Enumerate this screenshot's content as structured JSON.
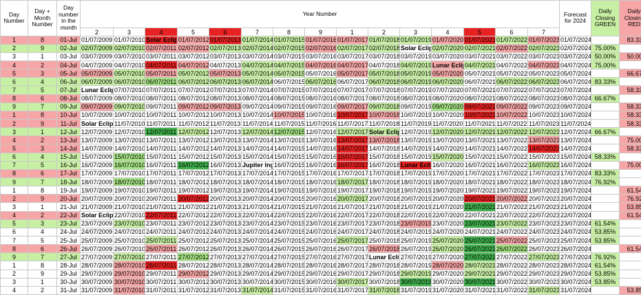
{
  "headers": {
    "day_number": "Day Number",
    "day_month_number": "Day + Month Number",
    "day_number_month": "Day number in the month",
    "year_number": "Year Number",
    "forecast": "Forecast for 2024",
    "green": "Daily Closing GREEN",
    "red": "Daily Closing RED"
  },
  "year_numbers": [
    "2",
    "3",
    "4",
    "5",
    "6",
    "7",
    "8",
    "9",
    "1",
    "2",
    "3",
    "4",
    "5",
    "6",
    "7"
  ],
  "rows": [
    {
      "d": "1",
      "dm": "8",
      "day": "01-Jul",
      "cells": [
        "01/07/2009",
        "01/07/2010",
        "Solar Eclips",
        "01/07/2012",
        "01/07/2013",
        "01/07/2014",
        "01/07/2015",
        "01/07/2016",
        "01/07/2017",
        "01/07/2018",
        "01/07/2019",
        "01/07/2020",
        "01/07/2021",
        "01/07/2022",
        "01/07/2023"
      ],
      "f": "01/07/2024",
      "g": "",
      "r": "83.33%"
    },
    {
      "d": "2",
      "dm": "9",
      "day": "02-Jul",
      "cells": [
        "02/07/2009",
        "02/07/2010",
        "02/07/2011",
        "02/07/2012",
        "02/07/2013",
        "02/07/2014",
        "02/07/2015",
        "02/07/2016",
        "02/07/2017",
        "02/07/2018",
        "Solar Eclips",
        "02/07/2020",
        "02/07/2021",
        "02/07/2022",
        "02/07/2023"
      ],
      "f": "02/07/2024",
      "g": "75.00%",
      "r": ""
    },
    {
      "d": "3",
      "dm": "1",
      "day": "03-Jul",
      "cells": [
        "03/07/2009",
        "03/07/2010",
        "03/07/2011",
        "03/07/2012",
        "03/07/2013",
        "03/07/2014",
        "03/07/2015",
        "03/07/2016",
        "03/07/2017",
        "03/07/2018",
        "03/07/2019",
        "03/07/2020",
        "03/07/2021",
        "03/07/2022",
        "03/07/2023"
      ],
      "f": "03/07/2024",
      "g": "50.00%",
      "r": "50.00%"
    },
    {
      "d": "4",
      "dm": "2",
      "day": "04-Jul",
      "cells": [
        "04/07/2009",
        "04/07/2010",
        "04/07/2011",
        "04/07/2012",
        "04/07/2013",
        "04/07/2014",
        "04/07/2015",
        "04/07/2016",
        "04/07/2017",
        "04/07/2018",
        "04/07/2019",
        "Lunar Eclips",
        "04/07/2021",
        "04/07/2022",
        "04/07/2023"
      ],
      "f": "04/07/2024",
      "g": "75.00%",
      "r": ""
    },
    {
      "d": "5",
      "dm": "3",
      "day": "05-Jul",
      "cells": [
        "05/07/2009",
        "05/07/2010",
        "05/07/2011",
        "05/07/2012",
        "05/07/2013",
        "05/07/2014",
        "05/07/2015",
        "05/07/2016",
        "05/07/2017",
        "05/07/2018",
        "05/07/2019",
        "05/07/2020",
        "05/07/2021",
        "05/07/2022",
        "05/07/2023"
      ],
      "f": "05/07/2024",
      "g": "",
      "r": "66.67%"
    },
    {
      "d": "6",
      "dm": "4",
      "day": "06-Jul",
      "cells": [
        "06/07/2009",
        "06/07/2010",
        "06/07/2011",
        "06/07/2012",
        "06/07/2013",
        "06/07/2014",
        "06/07/2015",
        "06/07/2016",
        "06/07/2017",
        "06/07/2018",
        "06/07/2019",
        "06/07/2020",
        "06/07/2021",
        "06/07/2022",
        "06/07/2023"
      ],
      "f": "06/07/2024",
      "g": "83.33%",
      "r": ""
    },
    {
      "d": "7",
      "dm": "5",
      "day": "07-Jul",
      "cells": [
        "Lunar Eclips",
        "07/07/2010",
        "07/07/2011",
        "07/07/2012",
        "07/07/2013",
        "07/07/2014",
        "07/07/2015",
        "07/07/2016",
        "07/07/2017",
        "07/07/2018",
        "07/07/2019",
        "07/07/2020",
        "07/07/2021",
        "07/07/2022",
        "07/07/2023"
      ],
      "f": "07/07/2024",
      "g": "",
      "r": "58.33%"
    },
    {
      "d": "8",
      "dm": "6",
      "day": "08-Jul",
      "cells": [
        "08/07/2009",
        "08/07/2010",
        "08/07/2011",
        "08/07/2012",
        "08/07/2013",
        "08/07/2014",
        "08/07/2015",
        "08/07/2016",
        "08/07/2017",
        "08/07/2018",
        "08/07/2019",
        "08/07/2020",
        "08/07/2021",
        "08/07/2022",
        "08/07/2023"
      ],
      "f": "08/07/2024",
      "g": "66.67%",
      "r": ""
    },
    {
      "d": "9",
      "dm": "7",
      "day": "09-Jul",
      "cells": [
        "09/07/2009",
        "09/07/2010",
        "09/07/2011",
        "09/07/2012",
        "09/07/2013",
        "09/07/2014",
        "09/07/2015",
        "09/07/2016",
        "09/07/2017",
        "09/07/2018",
        "09/07/2019",
        "09/07/2020",
        "09/07/2021",
        "09/07/2022",
        "09/07/2023"
      ],
      "f": "09/07/2024",
      "g": "",
      "r": "58.33%"
    },
    {
      "d": "1",
      "dm": "8",
      "day": "10-Jul",
      "cells": [
        "10/07/2009",
        "10/07/2010",
        "10/07/2011",
        "10/07/2012",
        "10/07/2013",
        "10/07/2014",
        "10/07/2015",
        "10/07/2016",
        "10/07/2017",
        "10/07/2018",
        "10/07/2019",
        "10/07/2020",
        "10/07/2021",
        "10/07/2022",
        "10/07/2023"
      ],
      "f": "10/07/2024",
      "g": "",
      "r": "58.33%"
    },
    {
      "d": "2",
      "dm": "9",
      "day": "11-Jul",
      "cells": [
        "Solar Eclips",
        "11/07/2010",
        "11/07/2011",
        "11/07/2012",
        "11/07/2013",
        "11/07/2014",
        "11/07/2015",
        "11/07/2016",
        "11/07/2017",
        "11/07/2018",
        "11/07/2019",
        "11/07/2020",
        "11/07/2021",
        "11/07/2022",
        "11/07/2023"
      ],
      "f": "11/07/2024",
      "g": "",
      "r": "58.33%"
    },
    {
      "d": "3",
      "dm": "1",
      "day": "12-Jul",
      "cells": [
        "12/07/2009",
        "12/07/2010",
        "12/07/2011",
        "12/07/2012",
        "12/07/2013",
        "12/07/2014",
        "12/07/2015",
        "12/07/2016",
        "12/07/2017",
        "Solar Eclips",
        "12/07/2019",
        "12/07/2020",
        "12/07/2021",
        "12/07/2022",
        "12/07/2023"
      ],
      "f": "12/07/2024",
      "g": "66.67%",
      "r": ""
    },
    {
      "d": "4",
      "dm": "2",
      "day": "13-Jul",
      "cells": [
        "13/07/2009",
        "13/07/2010",
        "13/07/2011",
        "13/07/2012",
        "13/07/2013",
        "13/07/2014",
        "13/07/2015",
        "13/07/2016",
        "13/07/2017",
        "13/07/2018",
        "13/07/2019",
        "13/07/2020",
        "13/07/2021",
        "13/07/2022",
        "13/07/2023"
      ],
      "f": "13/07/2024",
      "g": "",
      "r": "75.00%"
    },
    {
      "d": "5",
      "dm": "3",
      "day": "14-Jul",
      "cells": [
        "14/07/2009",
        "14/07/2010",
        "14/07/2011",
        "14/07/2012",
        "14/07/2013",
        "14/07/2014",
        "14/07/2015",
        "14/07/2016",
        "14/07/2017",
        "14/07/2018",
        "14/07/2019",
        "14/07/2020",
        "14/07/2021",
        "14/07/2022",
        "14/07/2023"
      ],
      "f": "14/07/2024",
      "g": "",
      "r": "58.33%"
    },
    {
      "d": "6",
      "dm": "4",
      "day": "15-Jul",
      "cells": [
        "15/07/2009",
        "15/07/2010",
        "15/07/2011",
        "15/07/2012",
        "15/07/2013",
        "15/07/2014",
        "15/07/2015",
        "15/07/2016",
        "15/07/2017",
        "15/07/2018",
        "15/07/2019",
        "15/07/2020",
        "15/07/2021",
        "15/07/2022",
        "15/07/2023"
      ],
      "f": "15/07/2024",
      "g": "58.33%",
      "r": ""
    },
    {
      "d": "7",
      "dm": "5",
      "day": "16-Jul",
      "cells": [
        "16/07/2009",
        "16/07/2010",
        "16/07/2011",
        "16/07/2012",
        "16/07/2013",
        "Jupiter Ingr",
        "16/07/2015",
        "16/07/2016",
        "16/07/2017",
        "16/07/2018",
        "Lunar Eclips",
        "16/07/2020",
        "16/07/2021",
        "16/07/2022",
        "16/07/2023"
      ],
      "f": "16/07/2024",
      "g": "",
      "r": "75.00%"
    },
    {
      "d": "8",
      "dm": "6",
      "day": "17-Jul",
      "cells": [
        "17/07/2009",
        "17/07/2010",
        "17/07/2011",
        "17/07/2012",
        "17/07/2013",
        "17/07/2014",
        "17/07/2015",
        "17/07/2016",
        "17/07/2017",
        "17/07/2018",
        "17/07/2019",
        "17/07/2020",
        "17/07/2021",
        "17/07/2022",
        "17/07/2023"
      ],
      "f": "17/07/2024",
      "g": "83.33%",
      "r": ""
    },
    {
      "d": "9",
      "dm": "7",
      "day": "18-Jul",
      "cells": [
        "18/07/2009",
        "18/07/2010",
        "18/07/2011",
        "18/07/2012",
        "18/07/2013",
        "18/07/2014",
        "18/07/2015",
        "18/07/2016",
        "18/07/2017",
        "18/07/2018",
        "18/07/2019",
        "18/07/2020",
        "18/07/2021",
        "18/07/2022",
        "18/07/2023"
      ],
      "f": "18/07/2024",
      "g": "76.92%",
      "r": ""
    },
    {
      "d": "1",
      "dm": "8",
      "day": "19-Jul",
      "cells": [
        "19/07/2009",
        "19/07/2010",
        "19/07/2011",
        "19/07/2012",
        "19/07/2013",
        "19/07/2014",
        "19/07/2015",
        "19/07/2016",
        "19/07/2017",
        "19/07/2018",
        "19/07/2019",
        "19/07/2020",
        "19/07/2021",
        "19/07/2022",
        "19/07/2023"
      ],
      "f": "19/07/2024",
      "g": "",
      "r": "61.54%"
    },
    {
      "d": "2",
      "dm": "9",
      "day": "20-Jul",
      "cells": [
        "20/07/2009",
        "20/07/2010",
        "20/07/2011",
        "20/07/2012",
        "20/07/2013",
        "20/07/2014",
        "20/07/2015",
        "20/07/2016",
        "20/07/2017",
        "20/07/2018",
        "20/07/2019",
        "20/07/2020",
        "20/07/2021",
        "20/07/2022",
        "20/07/2023"
      ],
      "f": "20/07/2024",
      "g": "",
      "r": "76.92%"
    },
    {
      "d": "3",
      "dm": "1",
      "day": "21-Jul",
      "cells": [
        "21/07/2009",
        "21/07/2010",
        "21/07/2011",
        "21/07/2012",
        "21/07/2013",
        "21/07/2014",
        "21/07/2015",
        "21/07/2016",
        "21/07/2017",
        "21/07/2018",
        "21/07/2019",
        "21/07/2020",
        "21/07/2021",
        "21/07/2022",
        "21/07/2023"
      ],
      "f": "21/07/2024",
      "g": "",
      "r": "53.85%"
    },
    {
      "d": "4",
      "dm": "2",
      "day": "22-Jul",
      "cells": [
        "Solar Eclipse",
        "22/07/2010",
        "22/07/2011",
        "22/07/2012",
        "22/07/2013",
        "22/07/2014",
        "22/07/2015",
        "22/07/2016",
        "22/07/2017",
        "22/07/2018",
        "22/07/2019",
        "22/07/2020",
        "22/07/2021",
        "22/07/2022",
        "22/07/2023"
      ],
      "f": "22/07/2024",
      "g": "",
      "r": "61.54%"
    },
    {
      "d": "5",
      "dm": "3",
      "day": "23-Jul",
      "cells": [
        "23/07/2009",
        "23/07/2010",
        "23/07/2011",
        "23/07/2012",
        "23/07/2013",
        "23/07/2014",
        "23/07/2015",
        "23/07/2016",
        "23/07/2017",
        "23/07/2018",
        "23/07/2019",
        "23/07/2020",
        "23/07/2021",
        "23/07/2022",
        "23/07/2023"
      ],
      "f": "23/07/2024",
      "g": "61.54%",
      "r": ""
    },
    {
      "d": "6",
      "dm": "4",
      "day": "24-Jul",
      "cells": [
        "24/07/2009",
        "24/07/2010",
        "24/07/2011",
        "24/07/2012",
        "24/07/2013",
        "24/07/2014",
        "24/07/2015",
        "24/07/2016",
        "24/07/2017",
        "24/07/2018",
        "24/07/2019",
        "24/07/2020",
        "24/07/2021",
        "24/07/2022",
        "24/07/2023"
      ],
      "f": "24/07/2024",
      "g": "53.85%",
      "r": ""
    },
    {
      "d": "7",
      "dm": "5",
      "day": "25-Jul",
      "cells": [
        "25/07/2009",
        "25/07/2010",
        "25/07/2011",
        "25/07/2012",
        "25/07/2013",
        "25/07/2014",
        "25/07/2015",
        "25/07/2016",
        "25/07/2017",
        "25/07/2018",
        "25/07/2019",
        "25/07/2020",
        "25/07/2021",
        "25/07/2022",
        "25/07/2023"
      ],
      "f": "25/07/2024",
      "g": "53.85%",
      "r": ""
    },
    {
      "d": "8",
      "dm": "6",
      "day": "26-Jul",
      "cells": [
        "26/07/2009",
        "26/07/2010",
        "26/07/2011",
        "26/07/2012",
        "26/07/2013",
        "26/07/2014",
        "26/07/2015",
        "26/07/2016",
        "26/07/2017",
        "26/07/2018",
        "26/07/2019",
        "26/07/2020",
        "26/07/2021",
        "26/07/2022",
        "26/07/2023"
      ],
      "f": "26/07/2024",
      "g": "",
      "r": "61.54%"
    },
    {
      "d": "9",
      "dm": "7",
      "day": "27-Jul",
      "cells": [
        "27/07/2009",
        "27/07/2010",
        "27/07/2011",
        "27/07/2012",
        "27/07/2013",
        "27/07/2014",
        "27/07/2015",
        "27/07/2016",
        "27/07/2017",
        "Lunar Eclips",
        "27/07/2019",
        "27/07/2020",
        "27/07/2021",
        "27/07/2022",
        "27/07/2023"
      ],
      "f": "27/07/2024",
      "g": "76.92%",
      "r": ""
    },
    {
      "d": "1",
      "dm": "8",
      "day": "28-Jul",
      "cells": [
        "28/07/2009",
        "28/07/2010",
        "28/07/2011",
        "28/07/2012",
        "28/07/2013",
        "28/07/2014",
        "28/07/2015",
        "28/07/2016",
        "28/07/2017",
        "28/07/2018",
        "28/07/2019",
        "28/07/2020",
        "28/07/2021",
        "28/07/2022",
        "28/07/2023"
      ],
      "f": "28/07/2024",
      "g": "61.54%",
      "r": ""
    },
    {
      "d": "2",
      "dm": "9",
      "day": "29-Jul",
      "cells": [
        "29/07/2009",
        "29/07/2010",
        "29/07/2011",
        "29/07/2012",
        "29/07/2013",
        "29/07/2014",
        "29/07/2015",
        "29/07/2016",
        "29/07/2017",
        "29/07/2018",
        "29/07/2019",
        "29/07/2020",
        "29/07/2021",
        "29/07/2022",
        "29/07/2023"
      ],
      "f": "29/07/2024",
      "g": "53.85%",
      "r": ""
    },
    {
      "d": "3",
      "dm": "1",
      "day": "30-Jul",
      "cells": [
        "30/07/2009",
        "30/07/2010",
        "30/07/2011",
        "30/07/2012",
        "30/07/2013",
        "30/07/2014",
        "30/07/2015",
        "30/07/2016",
        "30/07/2017",
        "30/07/2018",
        "30/07/2019",
        "30/07/2020",
        "30/07/2021",
        "30/07/2022",
        "30/07/2023"
      ],
      "f": "30/07/2024",
      "g": "53.85%",
      "r": ""
    },
    {
      "d": "4",
      "dm": "2",
      "day": "31-Jul",
      "cells": [
        "31/07/2009",
        "31/07/2010",
        "31/07/2011",
        "31/07/2012",
        "31/07/2013",
        "31/07/2014",
        "31/07/2015",
        "31/07/2016",
        "31/07/2017",
        "31/07/2018",
        "31/07/2019",
        "31/07/2020",
        "31/07/2021",
        "31/07/2022",
        "31/07/2023"
      ],
      "f": "31/07/2024",
      "g": "",
      "r": "53.85%"
    }
  ]
}
